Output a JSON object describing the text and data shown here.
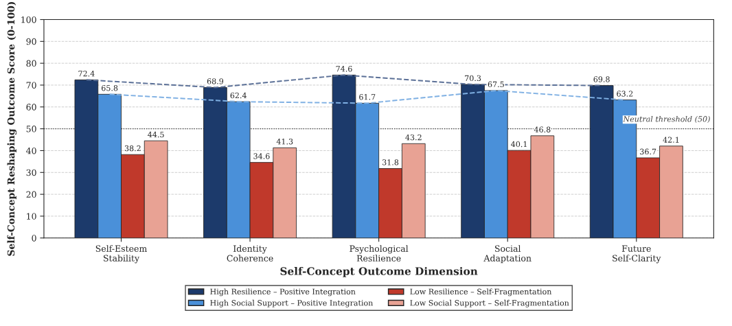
{
  "chart_data": {
    "type": "bar",
    "xlabel": "Self-Concept Outcome Dimension",
    "ylabel": "Self-Concept Reshaping Outcome Score (0-100)",
    "categories": [
      "Self-Esteem\nStability",
      "Identity\nCoherence",
      "Psychological\nResilience",
      "Social\nAdaptation",
      "Future\nSelf-Clarity"
    ],
    "series": [
      {
        "name": "High Resilience – Positive Integration",
        "color": "#1c3a6b",
        "values": [
          72.4,
          68.9,
          74.6,
          70.3,
          69.8
        ],
        "value_labels": [
          "72.4",
          "68.9",
          "74.6",
          "70.3",
          "69.8"
        ]
      },
      {
        "name": "High Social Support – Positive Integration",
        "color": "#4a90d9",
        "values": [
          65.8,
          62.4,
          61.7,
          67.5,
          63.2
        ],
        "value_labels": [
          "65.8",
          "62.4",
          "61.7",
          "67.5",
          "63.2"
        ]
      },
      {
        "name": "Low Resilience – Self-Fragmentation",
        "color": "#c0392b",
        "values": [
          38.2,
          34.6,
          31.8,
          40.1,
          36.7
        ],
        "value_labels": [
          "38.2",
          "34.6",
          "31.8",
          "40.1",
          "36.7"
        ]
      },
      {
        "name": "Low Social Support – Self-Fragmentation",
        "color": "#e8a294",
        "values": [
          44.5,
          41.3,
          43.2,
          46.8,
          42.1
        ],
        "value_labels": [
          "44.5",
          "41.3",
          "43.2",
          "46.8",
          "42.1"
        ]
      },
      {
        "type": "line",
        "color": "#5a6f96",
        "line_style": "dashed",
        "values": [
          72.4,
          68.9,
          74.6,
          70.3,
          69.8
        ]
      },
      {
        "type": "line",
        "color": "#7fb0e3",
        "line_style": "dashed",
        "values": [
          65.8,
          62.4,
          61.7,
          67.5,
          63.2
        ]
      }
    ],
    "ylim": [
      0,
      100
    ],
    "yticks": [
      0,
      10,
      20,
      30,
      40,
      50,
      60,
      70,
      80,
      90,
      100
    ],
    "grid": "y",
    "legend": "bottom",
    "ref_lines": [
      {
        "axis": "y",
        "value": 50,
        "label": "Neutral threshold (50)",
        "color": "#333333",
        "line_style": "dotted"
      }
    ]
  }
}
